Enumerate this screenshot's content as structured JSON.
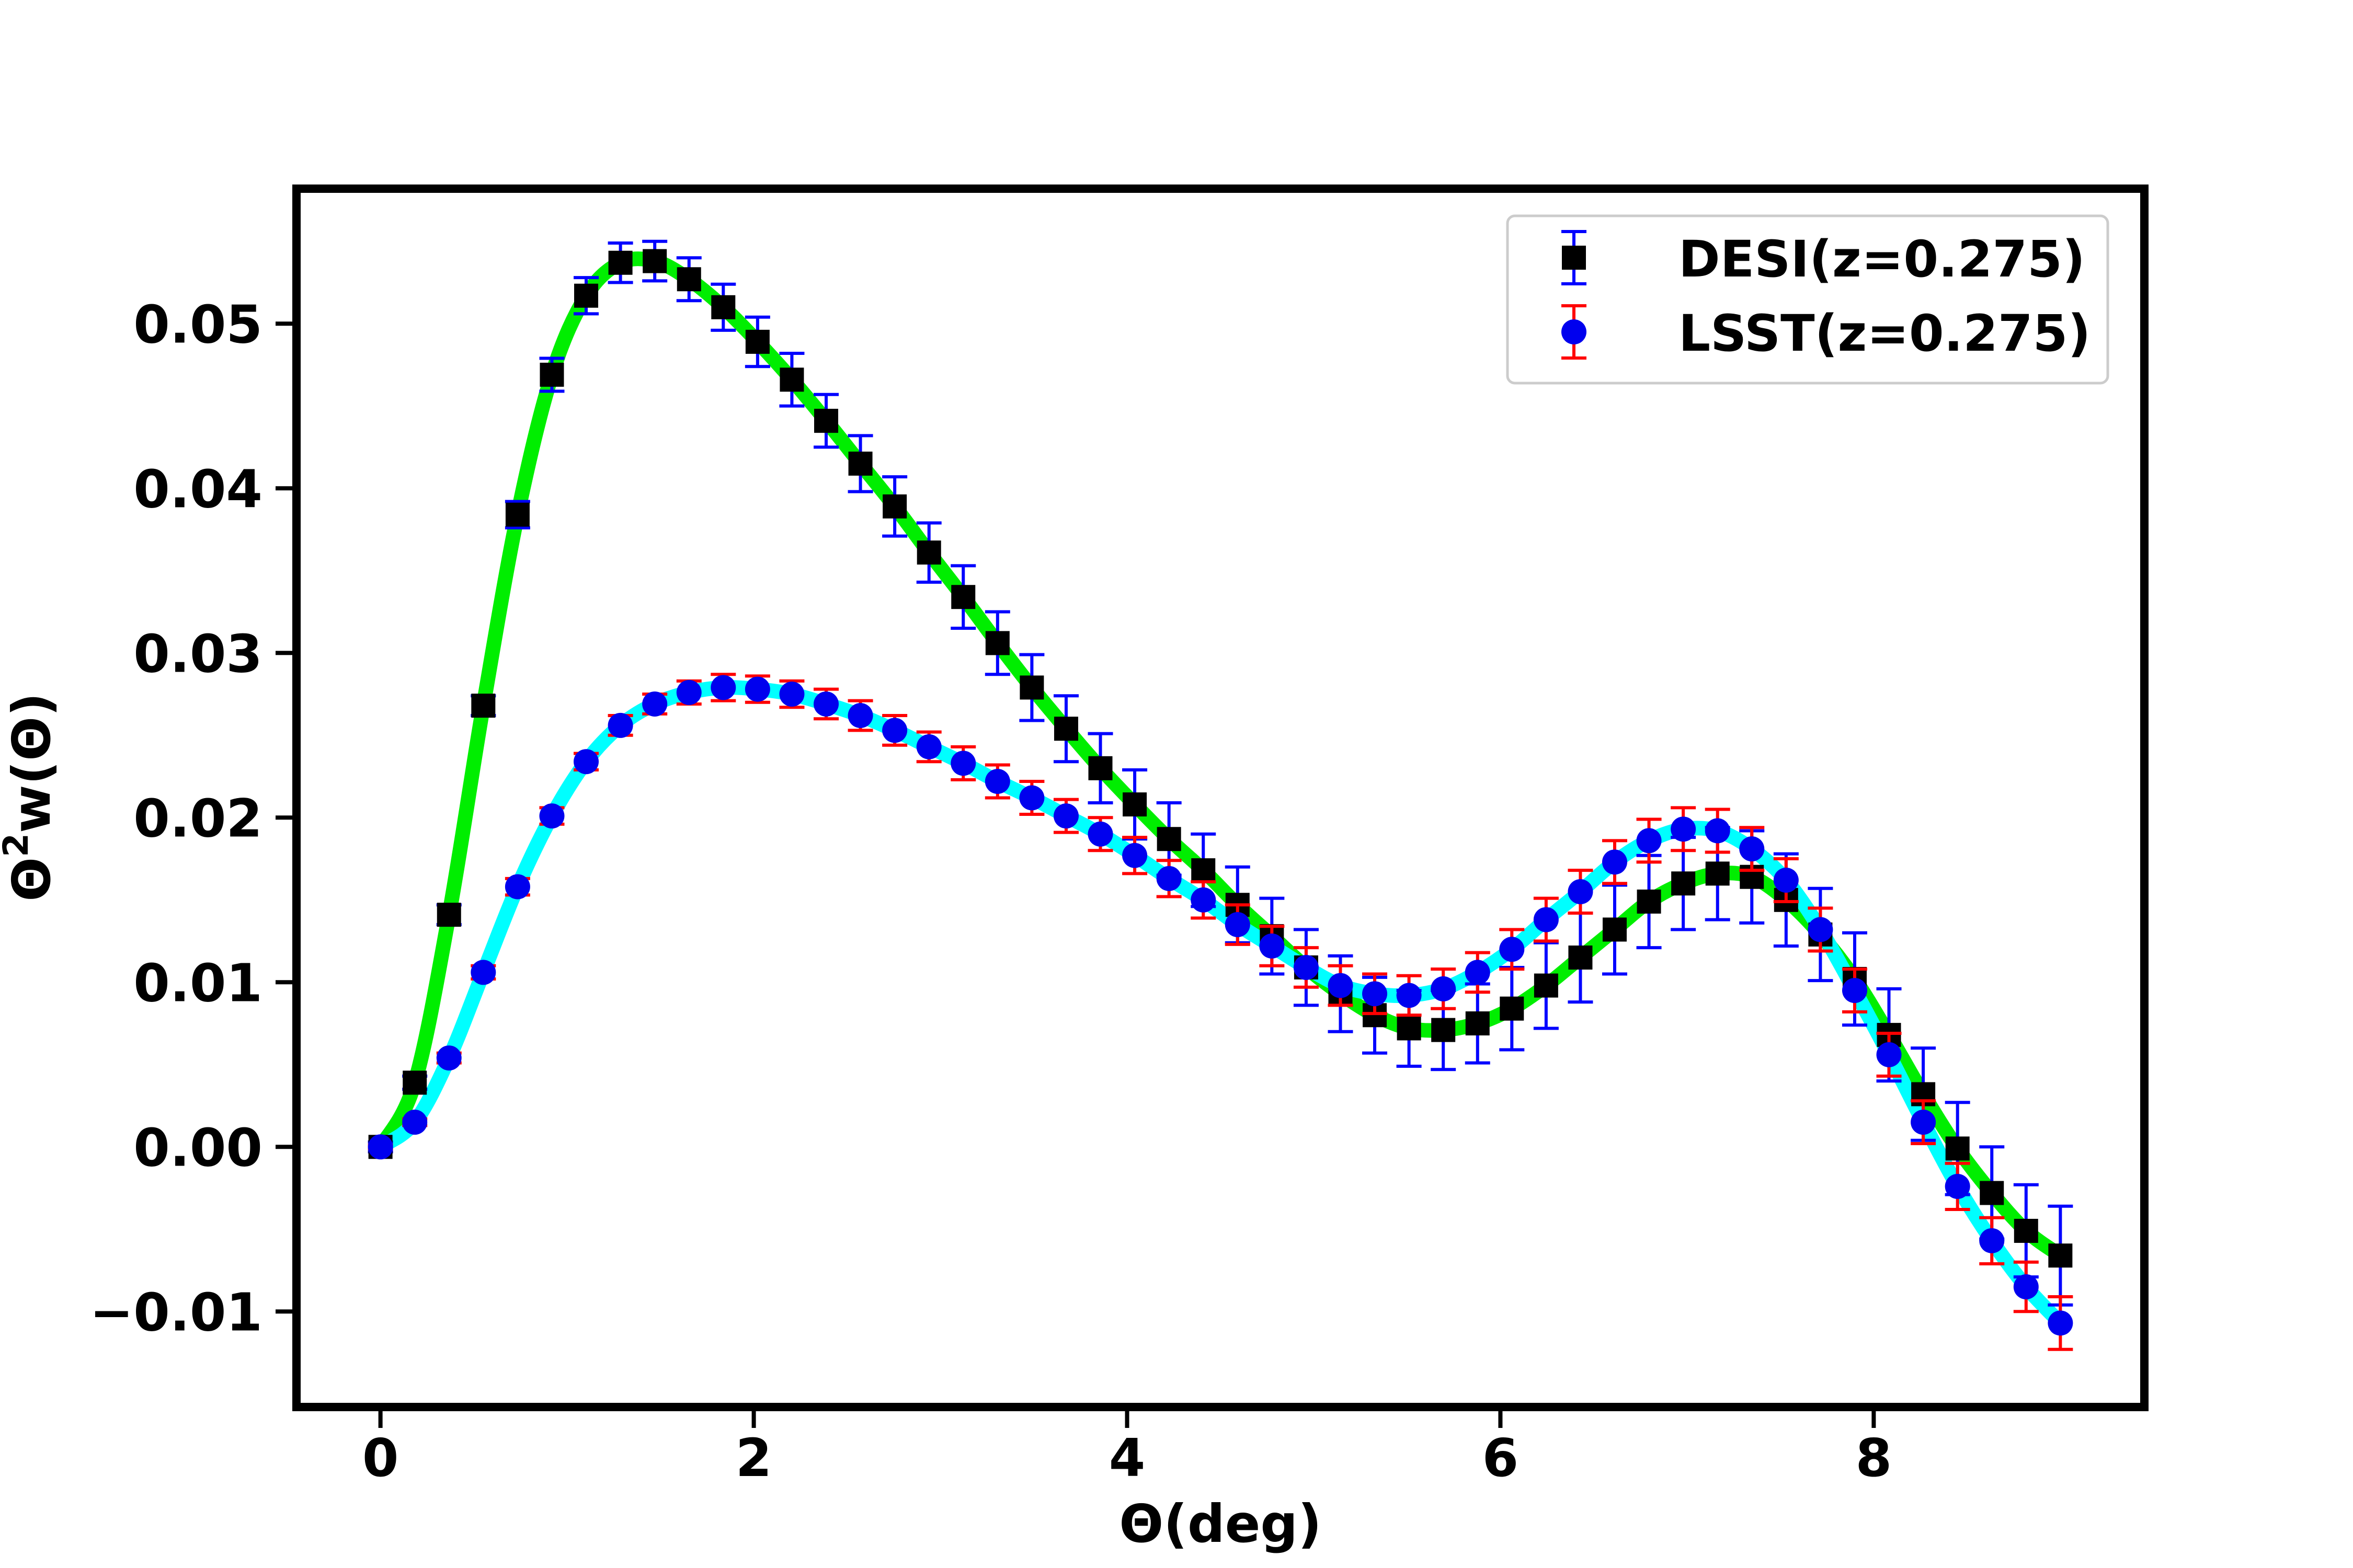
{
  "chart_data": {
    "type": "scatter",
    "title": "",
    "xlabel": "Θ(deg)",
    "ylabel_main": "Θ",
    "ylabel_sup": "2",
    "ylabel_tail": "w(Θ)",
    "xlim": [
      -0.45,
      9.45
    ],
    "ylim": [
      -0.0158,
      0.0582
    ],
    "xticks": [
      0,
      2,
      4,
      6,
      8
    ],
    "xtick_labels": [
      "0",
      "2",
      "4",
      "6",
      "8"
    ],
    "yticks": [
      -0.01,
      0.0,
      0.01,
      0.02,
      0.03,
      0.04,
      0.05
    ],
    "ytick_labels": [
      "−0.01",
      "0.00",
      "0.01",
      "0.02",
      "0.03",
      "0.04",
      "0.05"
    ],
    "legend_position": "top-right",
    "grid": false,
    "x": [
      0.0,
      0.1837,
      0.3673,
      0.551,
      0.7347,
      0.9184,
      1.102,
      1.2857,
      1.4694,
      1.6531,
      1.8367,
      2.0204,
      2.2041,
      2.3878,
      2.5714,
      2.7551,
      2.9388,
      3.1224,
      3.3061,
      3.4898,
      3.6735,
      3.8571,
      4.0408,
      4.2245,
      4.4082,
      4.5918,
      4.7755,
      4.9592,
      5.1429,
      5.3265,
      5.5102,
      5.6939,
      5.8776,
      6.0612,
      6.2449,
      6.4286,
      6.6122,
      6.7959,
      6.9796,
      7.1633,
      7.3469,
      7.5306,
      7.7143,
      7.898,
      8.0816,
      8.2653,
      8.449,
      8.6327,
      8.8163,
      9.0
    ],
    "series": [
      {
        "name": "DESI(z=0.275)",
        "marker": "square",
        "marker_color": "#000000",
        "errorbar_color": "#0000ff",
        "line_color": "#00ee00",
        "values": [
          0.0,
          0.0039,
          0.0141,
          0.0268,
          0.0384,
          0.0469,
          0.0517,
          0.0537,
          0.0538,
          0.0527,
          0.051,
          0.0489,
          0.0466,
          0.0441,
          0.0415,
          0.0389,
          0.0361,
          0.0334,
          0.0306,
          0.0279,
          0.0254,
          0.023,
          0.0208,
          0.0187,
          0.0168,
          0.0147,
          0.0128,
          0.0109,
          0.0093,
          0.008,
          0.0072,
          0.0071,
          0.0075,
          0.0084,
          0.0098,
          0.0115,
          0.0132,
          0.0149,
          0.016,
          0.0166,
          0.0164,
          0.015,
          0.0129,
          0.0102,
          0.0068,
          0.0032,
          -0.0001,
          -0.0028,
          -0.0051,
          -0.0066
        ],
        "errors": [
          0.0003,
          0.0004,
          0.0006,
          0.0006,
          0.0008,
          0.001,
          0.0011,
          0.0012,
          0.0012,
          0.0013,
          0.0014,
          0.0015,
          0.0016,
          0.0016,
          0.0017,
          0.0018,
          0.0018,
          0.0019,
          0.0019,
          0.002,
          0.002,
          0.0021,
          0.0021,
          0.0022,
          0.0022,
          0.0023,
          0.0023,
          0.0023,
          0.0023,
          0.0023,
          0.0023,
          0.0024,
          0.0024,
          0.0025,
          0.0026,
          0.0027,
          0.0027,
          0.0028,
          0.0028,
          0.0028,
          0.0028,
          0.0028,
          0.0028,
          0.0028,
          0.0028,
          0.0028,
          0.0028,
          0.0028,
          0.0028,
          0.003
        ]
      },
      {
        "name": "LSST(z=0.275)",
        "marker": "circle",
        "marker_color": "#0000ee",
        "errorbar_color": "#ff0000",
        "line_color": "#00ffff",
        "values": [
          0.0,
          0.0015,
          0.0054,
          0.0106,
          0.0158,
          0.0201,
          0.0234,
          0.0256,
          0.0269,
          0.0276,
          0.0279,
          0.0278,
          0.0275,
          0.0269,
          0.0262,
          0.0253,
          0.0243,
          0.0233,
          0.0222,
          0.0212,
          0.0201,
          0.019,
          0.0177,
          0.0163,
          0.015,
          0.0135,
          0.0122,
          0.0109,
          0.0098,
          0.0093,
          0.0092,
          0.0096,
          0.0106,
          0.012,
          0.0138,
          0.0155,
          0.0173,
          0.0186,
          0.0193,
          0.0192,
          0.0181,
          0.0162,
          0.0132,
          0.0095,
          0.0056,
          0.0015,
          -0.0024,
          -0.0057,
          -0.0085,
          -0.0107
        ],
        "errors": [
          0.0001,
          0.0002,
          0.0003,
          0.0004,
          0.0005,
          0.0005,
          0.0005,
          0.0006,
          0.0006,
          0.0007,
          0.0008,
          0.0008,
          0.0008,
          0.0009,
          0.0009,
          0.0009,
          0.0009,
          0.001,
          0.001,
          0.001,
          0.001,
          0.001,
          0.0011,
          0.0011,
          0.0011,
          0.0012,
          0.0012,
          0.0012,
          0.0012,
          0.0012,
          0.0012,
          0.0012,
          0.0012,
          0.0012,
          0.0013,
          0.0013,
          0.0013,
          0.0013,
          0.0013,
          0.0013,
          0.0013,
          0.0013,
          0.0013,
          0.0013,
          0.0013,
          0.0013,
          0.0014,
          0.0014,
          0.0015,
          0.0016
        ]
      }
    ]
  }
}
